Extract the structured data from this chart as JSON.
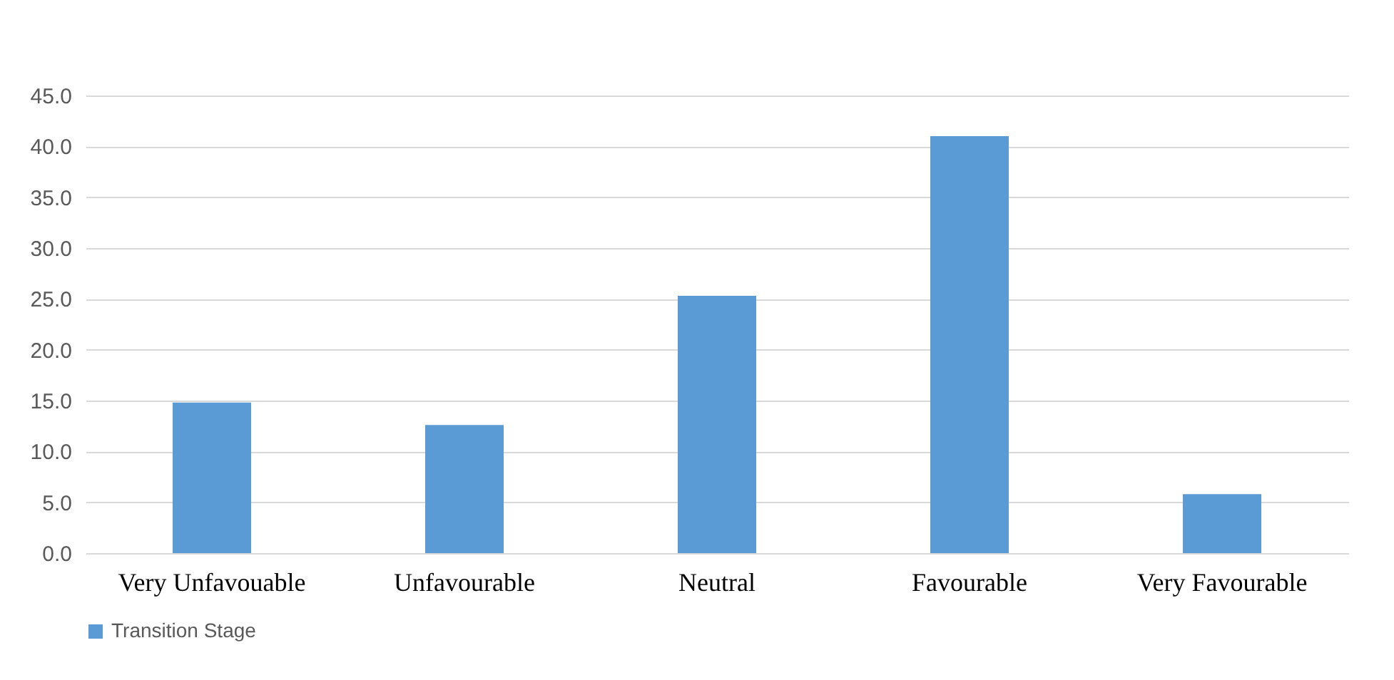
{
  "chart_data": {
    "type": "bar",
    "categories": [
      "Very Unfavouable",
      "Unfavourable",
      "Neutral",
      "Favourable",
      "Very Favourable"
    ],
    "series": [
      {
        "name": "Transition Stage",
        "color": "#5b9bd5",
        "values": [
          14.8,
          12.6,
          25.3,
          41.0,
          5.8
        ]
      }
    ],
    "ylim": [
      0,
      45
    ],
    "yticks": [
      {
        "value": 0,
        "label": "0.0"
      },
      {
        "value": 5,
        "label": "5.0"
      },
      {
        "value": 10,
        "label": "10.0"
      },
      {
        "value": 15,
        "label": "15.0"
      },
      {
        "value": 20,
        "label": "20.0"
      },
      {
        "value": 25,
        "label": "25.0"
      },
      {
        "value": 30,
        "label": "30.0"
      },
      {
        "value": 35,
        "label": "35.0"
      },
      {
        "value": 40,
        "label": "40.0"
      },
      {
        "value": 45,
        "label": "45.0"
      }
    ],
    "grid": "y",
    "legend": "bottom"
  }
}
